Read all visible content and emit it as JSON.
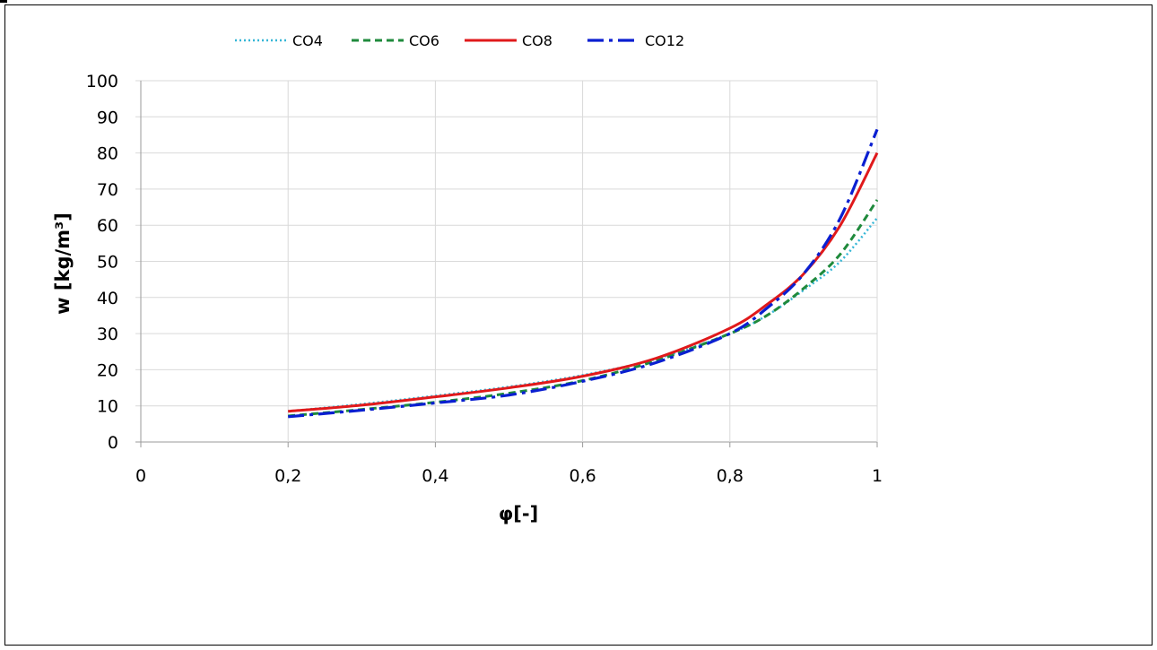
{
  "chart_data": {
    "type": "line",
    "xlabel": "φ[-]",
    "ylabel": "w [kg/m³]",
    "xlim": [
      0,
      1
    ],
    "ylim": [
      0,
      100
    ],
    "x_ticks": [
      0,
      0.2,
      0.4,
      0.6,
      0.8,
      1
    ],
    "x_tick_labels": [
      "0",
      "0,2",
      "0,4",
      "0,6",
      "0,8",
      "1"
    ],
    "y_ticks": [
      0,
      10,
      20,
      30,
      40,
      50,
      60,
      70,
      80,
      90,
      100
    ],
    "y_tick_labels": [
      "0",
      "10",
      "20",
      "30",
      "40",
      "50",
      "60",
      "70",
      "80",
      "90",
      "100"
    ],
    "grid": true,
    "legend_position": "top",
    "series": [
      {
        "name": "CO4",
        "color": "#35b6d6",
        "style": "dotted",
        "x": [
          0.2,
          0.3,
          0.4,
          0.5,
          0.6,
          0.7,
          0.8,
          0.85,
          0.9,
          0.95,
          1.0
        ],
        "y": [
          8.5,
          10.5,
          12.8,
          15.3,
          18.5,
          23.0,
          30.0,
          35.0,
          42.0,
          50.0,
          62.0
        ]
      },
      {
        "name": "CO6",
        "color": "#1f8a3c",
        "style": "dashed",
        "x": [
          0.2,
          0.3,
          0.4,
          0.5,
          0.6,
          0.7,
          0.8,
          0.85,
          0.9,
          0.95,
          1.0
        ],
        "y": [
          7.2,
          9.0,
          11.0,
          13.5,
          17.0,
          22.5,
          30.0,
          35.0,
          42.5,
          52.0,
          67.0
        ]
      },
      {
        "name": "CO8",
        "color": "#e0191b",
        "style": "solid",
        "x": [
          0.2,
          0.3,
          0.4,
          0.5,
          0.6,
          0.7,
          0.8,
          0.85,
          0.9,
          0.95,
          1.0
        ],
        "y": [
          8.5,
          10.2,
          12.5,
          15.0,
          18.2,
          23.2,
          31.5,
          38.0,
          46.5,
          60.0,
          80.0
        ]
      },
      {
        "name": "CO12",
        "color": "#0a1fd1",
        "style": "dashdot",
        "x": [
          0.2,
          0.3,
          0.4,
          0.5,
          0.6,
          0.7,
          0.8,
          0.85,
          0.9,
          0.95,
          1.0
        ],
        "y": [
          7.0,
          8.8,
          10.8,
          13.0,
          16.8,
          22.0,
          30.0,
          37.0,
          46.5,
          62.0,
          86.5
        ]
      }
    ]
  }
}
